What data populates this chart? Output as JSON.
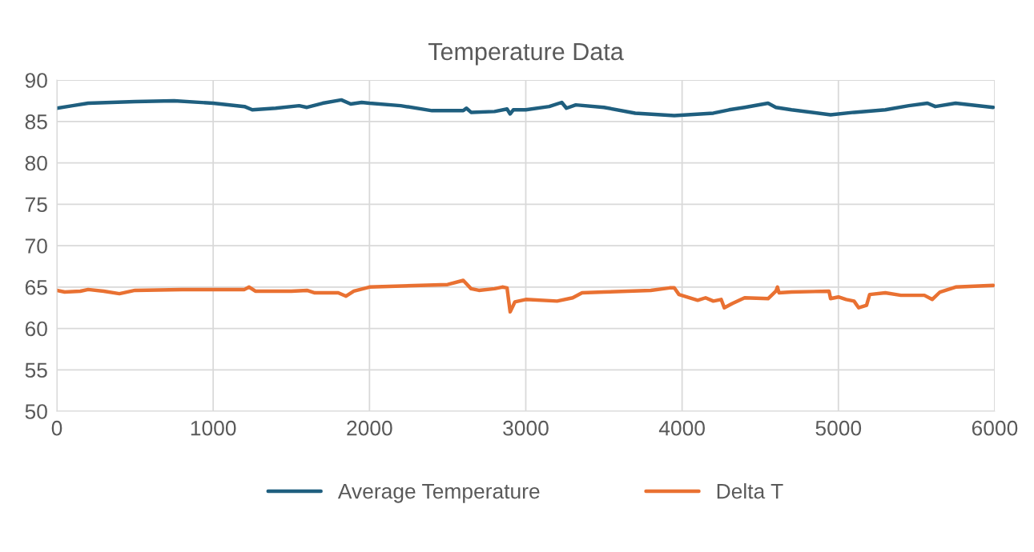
{
  "chart_data": {
    "type": "line",
    "title": "Temperature Data",
    "xlim": [
      0,
      6000
    ],
    "xticks": [
      0,
      1000,
      2000,
      3000,
      4000,
      5000,
      6000
    ],
    "ylim": [
      50,
      90
    ],
    "yticks": [
      50,
      55,
      60,
      65,
      70,
      75,
      80,
      85,
      90
    ],
    "grid": true,
    "legend": "bottom",
    "marker": "none",
    "line_style": "solid",
    "series": [
      {
        "name": "Average Temperature",
        "color": "#1f5f7f",
        "x": [
          0,
          100,
          200,
          500,
          750,
          1000,
          1200,
          1250,
          1400,
          1550,
          1600,
          1700,
          1820,
          1880,
          1950,
          2000,
          2200,
          2400,
          2600,
          2620,
          2650,
          2800,
          2880,
          2900,
          2920,
          3000,
          3150,
          3230,
          3260,
          3320,
          3500,
          3700,
          3950,
          4200,
          4300,
          4400,
          4550,
          4600,
          4700,
          4950,
          5100,
          5300,
          5450,
          5570,
          5620,
          5750,
          5990
        ],
        "values": [
          86.6,
          86.9,
          87.2,
          87.4,
          87.5,
          87.2,
          86.8,
          86.4,
          86.6,
          86.9,
          86.7,
          87.2,
          87.6,
          87.1,
          87.3,
          87.2,
          86.9,
          86.3,
          86.3,
          86.6,
          86.1,
          86.2,
          86.5,
          85.9,
          86.4,
          86.4,
          86.8,
          87.3,
          86.6,
          87.0,
          86.7,
          86.0,
          85.7,
          86.0,
          86.4,
          86.7,
          87.2,
          86.7,
          86.4,
          85.8,
          86.1,
          86.4,
          86.9,
          87.2,
          86.8,
          87.2,
          86.7
        ]
      },
      {
        "name": "Delta T",
        "color": "#e97132",
        "x": [
          0,
          50,
          150,
          200,
          300,
          400,
          500,
          800,
          1200,
          1230,
          1270,
          1500,
          1600,
          1650,
          1800,
          1850,
          1900,
          2000,
          2500,
          2600,
          2650,
          2700,
          2800,
          2850,
          2880,
          2900,
          2930,
          3000,
          3200,
          3300,
          3360,
          3500,
          3800,
          3920,
          3950,
          3980,
          4050,
          4100,
          4150,
          4200,
          4250,
          4270,
          4320,
          4400,
          4550,
          4600,
          4610,
          4620,
          4700,
          4940,
          4950,
          5000,
          5050,
          5100,
          5130,
          5180,
          5200,
          5300,
          5400,
          5550,
          5600,
          5650,
          5750,
          5990
        ],
        "values": [
          64.6,
          64.4,
          64.5,
          64.7,
          64.5,
          64.2,
          64.6,
          64.7,
          64.7,
          65.0,
          64.5,
          64.5,
          64.6,
          64.3,
          64.3,
          63.9,
          64.5,
          65.0,
          65.3,
          65.8,
          64.8,
          64.6,
          64.8,
          65.0,
          64.9,
          62.0,
          63.2,
          63.5,
          63.3,
          63.7,
          64.3,
          64.4,
          64.6,
          64.9,
          64.9,
          64.1,
          63.7,
          63.4,
          63.7,
          63.3,
          63.5,
          62.5,
          63.0,
          63.7,
          63.6,
          64.5,
          65.0,
          64.3,
          64.4,
          64.5,
          63.6,
          63.8,
          63.5,
          63.3,
          62.5,
          62.8,
          64.1,
          64.3,
          64.0,
          64.0,
          63.5,
          64.4,
          65.0,
          65.2
        ]
      }
    ]
  }
}
